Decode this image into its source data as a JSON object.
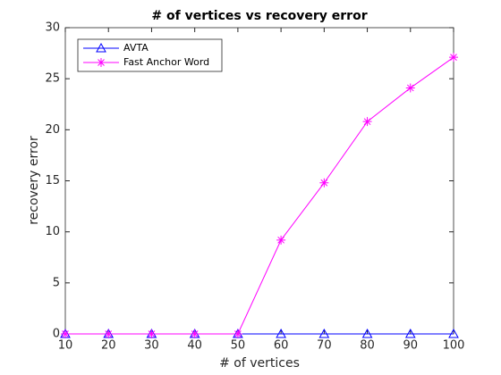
{
  "chart_data": {
    "type": "line",
    "title": "# of vertices vs recovery error",
    "x_label": "# of vertices",
    "y_label": "recovery error",
    "x": [
      10,
      20,
      30,
      40,
      50,
      60,
      70,
      80,
      90,
      100
    ],
    "series": [
      {
        "name": "AVTA",
        "color": "#0000ff",
        "marker": "triangle",
        "values": [
          0,
          0,
          0,
          0,
          0,
          0,
          0,
          0,
          0,
          0
        ]
      },
      {
        "name": "Fast Anchor Word",
        "color": "#ff00ff",
        "marker": "asterisk",
        "values": [
          0,
          0,
          0,
          0,
          0,
          9.2,
          14.8,
          20.8,
          24.1,
          27.1
        ]
      }
    ],
    "xlim": [
      10,
      100
    ],
    "xticks": [
      10,
      20,
      30,
      40,
      50,
      60,
      70,
      80,
      90,
      100
    ],
    "ylim": [
      0,
      30
    ],
    "yticks": [
      0,
      5,
      10,
      15,
      20,
      25,
      30
    ],
    "legend": "upper-left",
    "grid": false
  }
}
